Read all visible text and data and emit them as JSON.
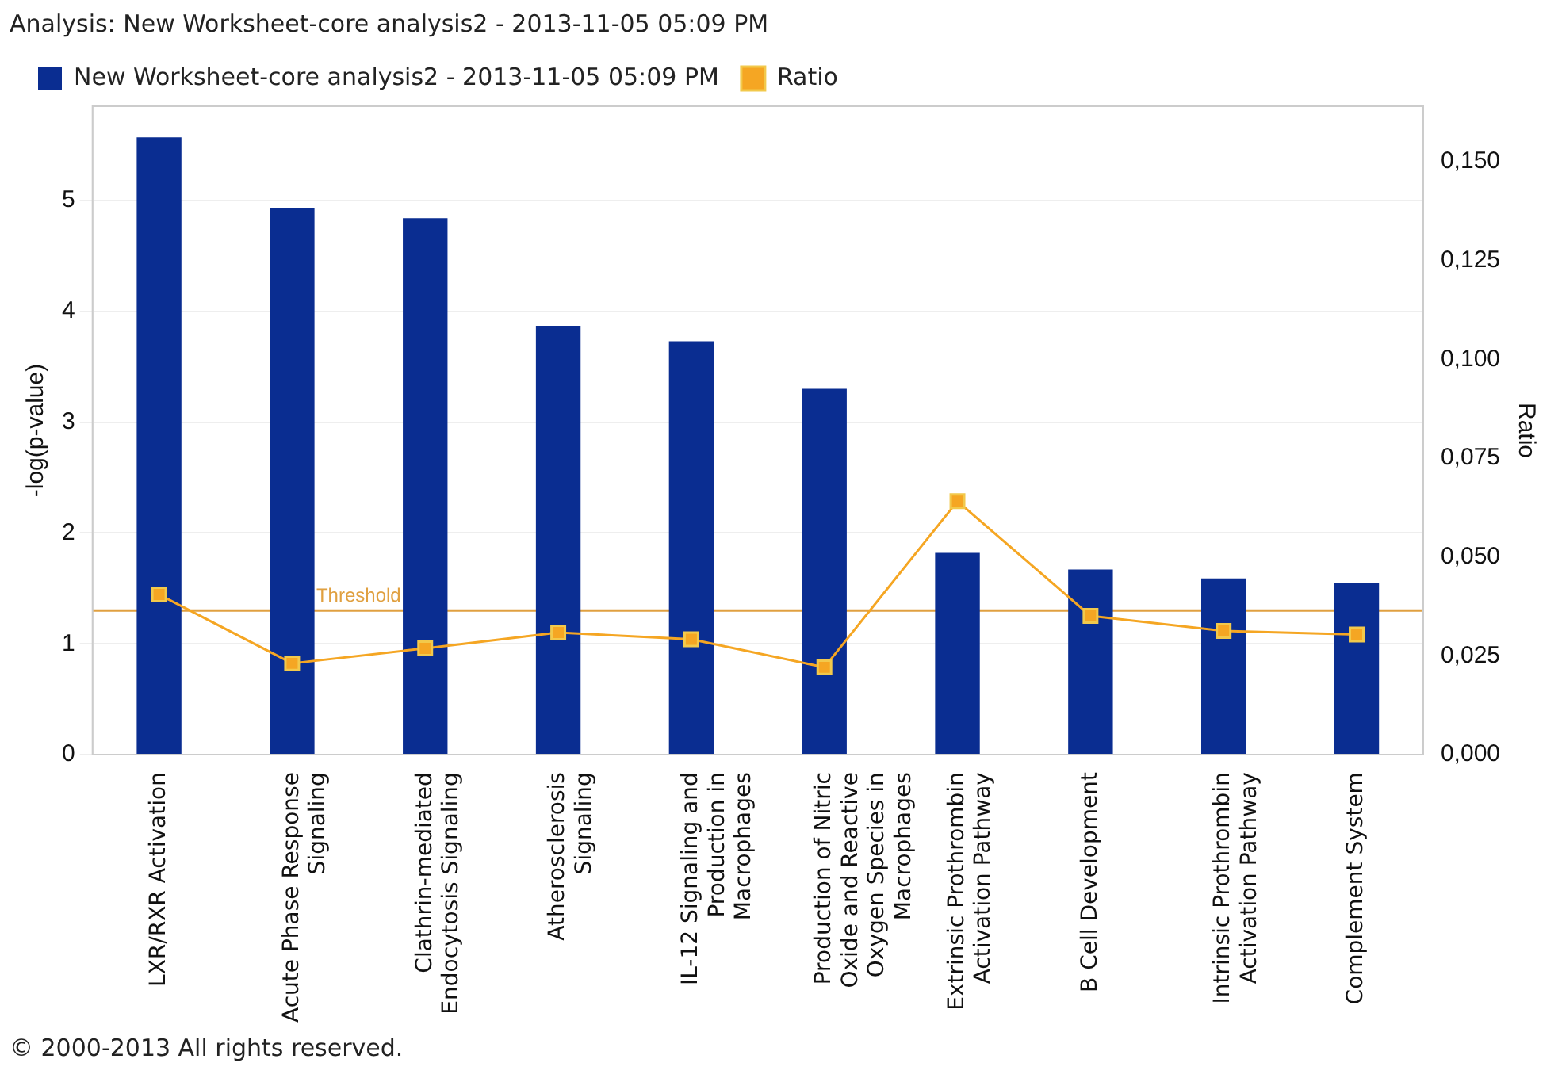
{
  "chart_data": {
    "type": "bar",
    "title": "Analysis: New Worksheet-core analysis2 - 2013-11-05 05:09 PM",
    "categories": [
      "LXR/RXR Activation",
      "Acute Phase Response Signaling",
      "Clathrin-mediated Endocytosis Signaling",
      "Atherosclerosis Signaling",
      "IL-12 Signaling and Production in Macrophages",
      "Production of Nitric Oxide and Reactive Oxygen Species in Macrophages",
      "Extrinsic Prothrombin Activation Pathway",
      "B Cell Development",
      "Intrinsic Prothrombin Activation Pathway",
      "Complement System"
    ],
    "series": [
      {
        "name": "New Worksheet-core analysis2 - 2013-11-05 05:09 PM",
        "color": "#0a2d91",
        "values": [
          5.57,
          4.93,
          4.84,
          3.87,
          3.73,
          3.3,
          1.82,
          1.67,
          1.59,
          1.55
        ]
      },
      {
        "name": "Ratio",
        "type": "line",
        "axis": "y2",
        "color": "#f5a623",
        "values": [
          0.0405,
          0.0231,
          0.0269,
          0.0309,
          0.0292,
          0.0221,
          0.0641,
          0.0351,
          0.0313,
          0.0304
        ]
      }
    ],
    "ylabel": "-log(p-value)",
    "y2label": "Ratio",
    "ylim": [
      0,
      5.85
    ],
    "yticks": [
      0,
      1,
      2,
      3,
      4,
      5
    ],
    "y2lim": [
      0,
      0.164
    ],
    "y2ticks": [
      {
        "value": 0,
        "label": "0,000"
      },
      {
        "value": 0.025,
        "label": "0,025"
      },
      {
        "value": 0.05,
        "label": "0,050"
      },
      {
        "value": 0.075,
        "label": "0,075"
      },
      {
        "value": 0.1,
        "label": "0,100"
      },
      {
        "value": 0.125,
        "label": "0,125"
      },
      {
        "value": 0.15,
        "label": "0,150"
      }
    ],
    "ref_lines": [
      {
        "axis": "y",
        "value": 1.3,
        "label": "Threshold",
        "color": "#e0a040"
      }
    ],
    "grid": "y",
    "legend": "top left",
    "marker": "square",
    "annotations": [
      "© 2000-2013 All rights reserved."
    ]
  }
}
